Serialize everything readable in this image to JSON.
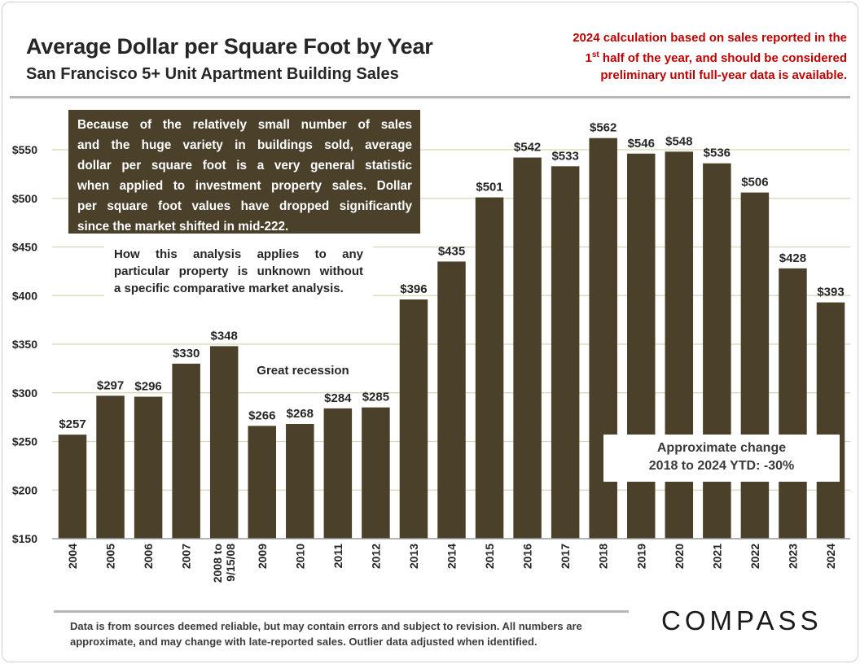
{
  "header": {
    "title": "Average Dollar per Square Foot by Year",
    "subtitle": "San Francisco 5+ Unit Apartment Building Sales"
  },
  "note": {
    "line1": "2024 calculation based on sales reported in the",
    "line2_prefix": "1",
    "line2_sup": "st",
    "line2_suffix": " half of the year, and should be considered",
    "line3": "preliminary until full-year data is available."
  },
  "annotations": {
    "info_lines": [
      "Because of the relatively small number of sales",
      "and the huge variety in buildings sold, average",
      "dollar per square foot is a very general statistic",
      "when applied to investment property sales. Dollar",
      "per square foot values have dropped significantly",
      "since the market shifted in mid-222."
    ],
    "analysis_lines": [
      "How this analysis applies to any",
      "particular property is unknown without",
      "a specific comparative market analysis."
    ],
    "recession": "Great recession",
    "change_line1": "Approximate change",
    "change_line2": "2018 to 2024 YTD: -30%"
  },
  "footer": {
    "line1": "Data is from sources deemed reliable, but may contain errors and subject to revision. All numbers are",
    "line2": "approximate, and may change with late-reported sales.  Outlier data adjusted when identified."
  },
  "logo": "COMPASS",
  "colors": {
    "bar": "#4b412b",
    "gridline": "#d3d6b4",
    "note": "#c00000",
    "text": "#262626"
  },
  "chart_data": {
    "type": "bar",
    "title": "Average Dollar per Square Foot by Year",
    "xlabel": "",
    "ylabel": "",
    "categories": [
      "2004",
      "2005",
      "2006",
      "2007",
      "2008 to 9/15/08",
      "2009",
      "2010",
      "2011",
      "2012",
      "2013",
      "2014",
      "2015",
      "2016",
      "2017",
      "2018",
      "2019",
      "2020",
      "2021",
      "2022",
      "2023",
      "2024"
    ],
    "category_lines": [
      [
        "2004"
      ],
      [
        "2005"
      ],
      [
        "2006"
      ],
      [
        "2007"
      ],
      [
        "2008 to",
        "9/15/08"
      ],
      [
        "2009"
      ],
      [
        "2010"
      ],
      [
        "2011"
      ],
      [
        "2012"
      ],
      [
        "2013"
      ],
      [
        "2014"
      ],
      [
        "2015"
      ],
      [
        "2016"
      ],
      [
        "2017"
      ],
      [
        "2018"
      ],
      [
        "2019"
      ],
      [
        "2020"
      ],
      [
        "2021"
      ],
      [
        "2022"
      ],
      [
        "2023"
      ],
      [
        "2024"
      ]
    ],
    "values": [
      257,
      297,
      296,
      330,
      348,
      266,
      268,
      284,
      285,
      396,
      435,
      501,
      542,
      533,
      562,
      546,
      548,
      536,
      506,
      428,
      393
    ],
    "value_labels": [
      "$257",
      "$297",
      "$296",
      "$330",
      "$348",
      "$266",
      "$268",
      "$284",
      "$285",
      "$396",
      "$435",
      "$501",
      "$542",
      "$533",
      "$562",
      "$546",
      "$548",
      "$536",
      "$506",
      "$428",
      "$393"
    ],
    "yticks": [
      150,
      200,
      250,
      300,
      350,
      400,
      450,
      500,
      550
    ],
    "ytick_labels": [
      "$150",
      "$200",
      "$250",
      "$300",
      "$350",
      "$400",
      "$450",
      "$500",
      "$550"
    ],
    "ylim": [
      150,
      590
    ],
    "grid": true
  }
}
